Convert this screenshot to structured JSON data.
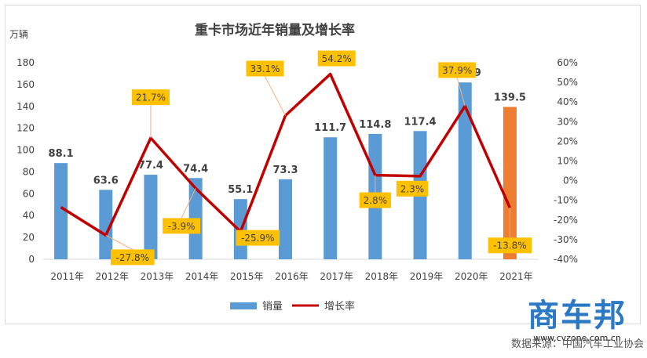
{
  "chart_data": {
    "type": "bar",
    "title": "重卡市场近年销量及增长率",
    "ylabel": "万辆",
    "categories": [
      "2011年",
      "2012年",
      "2013年",
      "2014年",
      "2015年",
      "2016年",
      "2017年",
      "2018年",
      "2019年",
      "2020年",
      "2021年"
    ],
    "ylim": [
      0,
      180
    ],
    "y_ticks": [
      "0",
      "20",
      "40",
      "60",
      "80",
      "100",
      "120",
      "140",
      "160",
      "180"
    ],
    "y2lim": [
      -40,
      60
    ],
    "y2_ticks": [
      "-40%",
      "-30%",
      "-20%",
      "-10%",
      "0%",
      "10%",
      "20%",
      "30%",
      "40%",
      "50%",
      "60%"
    ],
    "series": [
      {
        "name": "销量",
        "type": "bar",
        "color": "#5b9bd5",
        "values": [
          88.1,
          63.6,
          77.4,
          74.4,
          55.1,
          73.3,
          111.7,
          114.8,
          117.4,
          161.9,
          139.5
        ],
        "labels": [
          "88.1",
          "63.6",
          "77.4",
          "74.4",
          "55.1",
          "73.3",
          "111.7",
          "114.8",
          "117.4",
          "161.9",
          "139.5"
        ],
        "highlight_index": 10,
        "highlight_color": "#ed7d31"
      },
      {
        "name": "增长率",
        "type": "line",
        "color": "#c00000",
        "axis": "right",
        "values": [
          -13.5,
          -27.8,
          21.7,
          -3.9,
          -25.9,
          33.1,
          54.2,
          2.8,
          2.3,
          37.9,
          -13.8
        ],
        "labels": [
          "",
          "-27.8%",
          "21.7%",
          "-3.9%",
          "-25.9%",
          "33.1%",
          "54.2%",
          "2.8%",
          "2.3%",
          "37.9%",
          "-13.8%"
        ],
        "label_color": "#ffc000"
      }
    ],
    "legend": "bottom",
    "grid": false
  },
  "footer": {
    "source": "数据来源：中国汽车工业协会"
  },
  "watermark": {
    "name": "商车邦",
    "url": "www.cvzone.com.cn"
  }
}
